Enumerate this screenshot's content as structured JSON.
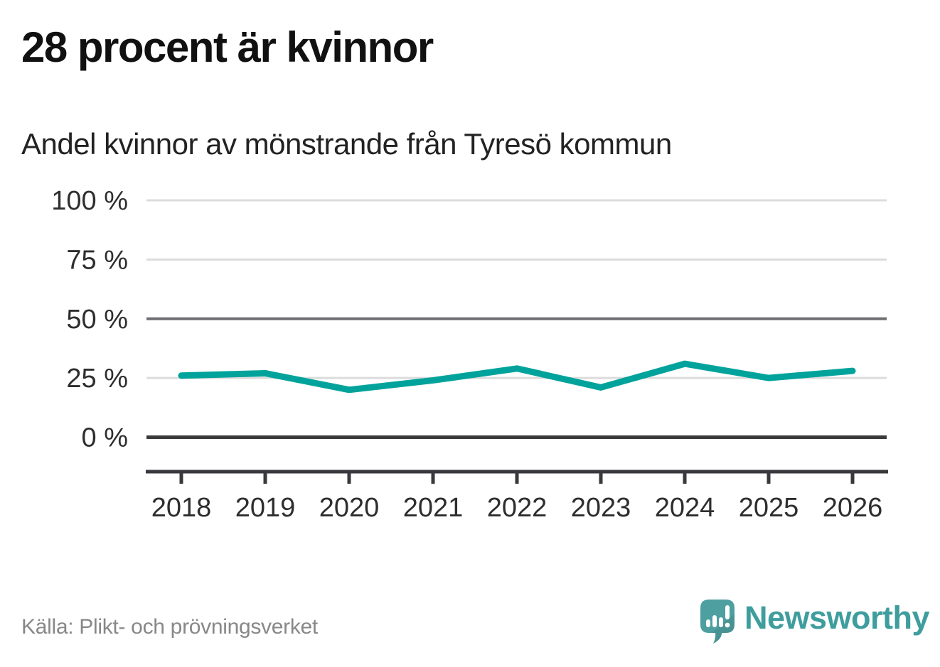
{
  "page": {
    "title": "28 procent är kvinnor",
    "subtitle": "Andel kvinnor av mönstrande från Tyresö kommun"
  },
  "chart_data": {
    "type": "line",
    "title": "28 procent är kvinnor",
    "subtitle": "Andel kvinnor av mönstrande från Tyresö kommun",
    "categories": [
      "2018",
      "2019",
      "2020",
      "2021",
      "2022",
      "2023",
      "2024",
      "2025",
      "2026"
    ],
    "series": [
      {
        "name": "Andel kvinnor av mönstrande",
        "values": [
          26,
          27,
          20,
          24,
          29,
          21,
          31,
          25,
          28
        ],
        "color": "#00a39b"
      }
    ],
    "unit": "%",
    "ylim": [
      0,
      100
    ],
    "yticks": [
      0,
      25,
      50,
      75,
      100
    ],
    "ytick_labels": [
      "0 %",
      "25 %",
      "50 %",
      "75 %",
      "100 %"
    ],
    "emphasized_gridline": 50,
    "baseline_gridline": 0,
    "grid": "horizontal",
    "legend": "none"
  },
  "footer": {
    "source": "Källa: Plikt- och prövningsverket",
    "brand": "Newsworthy"
  },
  "colors": {
    "line": "#00a39b",
    "grid_light": "#dcdcdc",
    "grid_mid": "#6e6e73",
    "grid_zero": "#3a3a3a",
    "axis": "#38383d",
    "title_text": "#111111",
    "axis_text": "#2e2e2e",
    "source_text": "#888888",
    "logo_teal": "#4d9fa0",
    "wordmark_teal": "#3f9d9d"
  }
}
